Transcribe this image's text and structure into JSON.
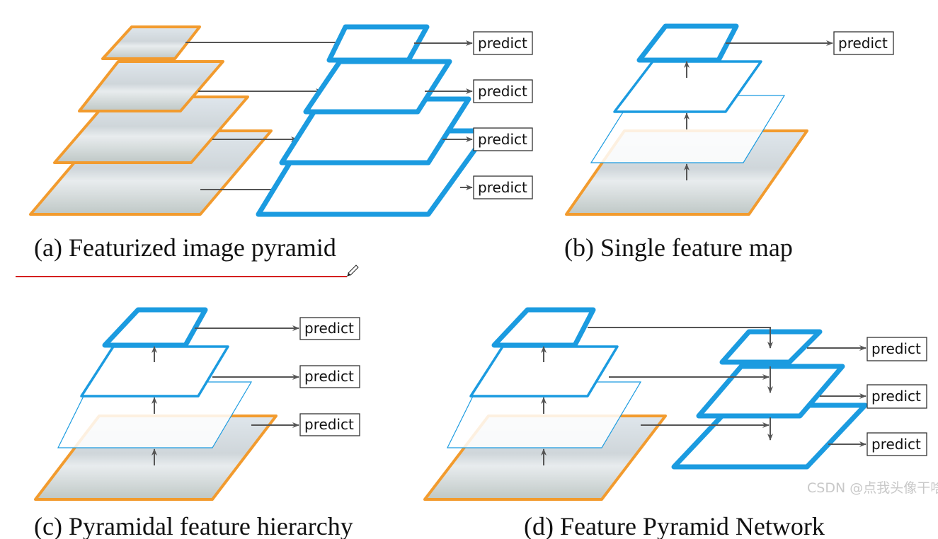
{
  "predict_label": "predict",
  "captions": {
    "a": "(a) Featurized image pyramid",
    "b": "(b) Single feature map",
    "c": "(c) Pyramidal feature hierarchy",
    "d": "(d) Feature Pyramid Network"
  },
  "watermark": "CSDN @点我头像干啥",
  "colors": {
    "image_border": "#f29b2e",
    "feature_map": "#1b9be0",
    "arrow": "#555555",
    "annotation_line": "#d42020"
  },
  "icons": {
    "cursor": "pencil-cursor-icon"
  }
}
